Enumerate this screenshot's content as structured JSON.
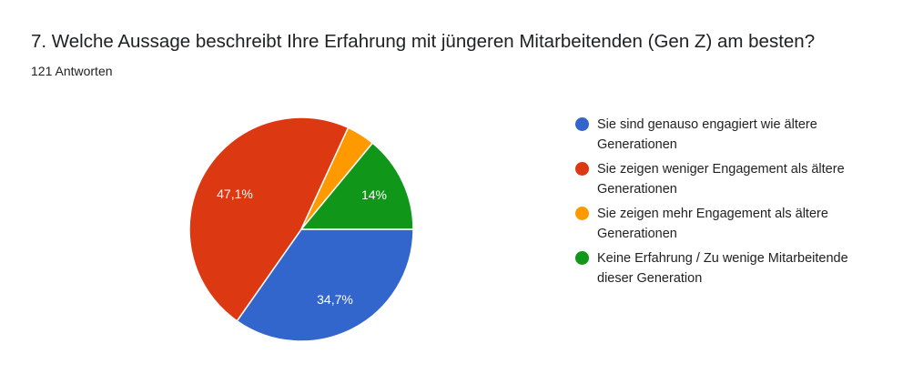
{
  "header": {
    "title": "7. Welche Aussage beschreibt Ihre Erfahrung mit jüngeren Mitarbeitenden (Gen Z) am besten?",
    "responses": "121 Antworten"
  },
  "legend": {
    "items": [
      {
        "label": "Sie sind genauso engagiert wie ältere Generationen",
        "color": "#3366cc"
      },
      {
        "label": "Sie zeigen weniger Engagement als ältere Generationen",
        "color": "#dc3912"
      },
      {
        "label": "Sie zeigen mehr Engagement als ältere Generationen",
        "color": "#ff9900"
      },
      {
        "label": "Keine Erfahrung / Zu wenige Mitarbeitende dieser Generation",
        "color": "#109618"
      }
    ]
  },
  "slice_labels": {
    "blue": "34,7%",
    "red": "47,1%",
    "orange": "",
    "green": "14%"
  },
  "chart_data": {
    "type": "pie",
    "title": "7. Welche Aussage beschreibt Ihre Erfahrung mit jüngeren Mitarbeitenden (Gen Z) am besten?",
    "subtitle": "121 Antworten",
    "categories": [
      "Sie sind genauso engagiert wie ältere Generationen",
      "Sie zeigen weniger Engagement als ältere Generationen",
      "Sie zeigen mehr Engagement als ältere Generationen",
      "Keine Erfahrung / Zu wenige Mitarbeitende dieser Generation"
    ],
    "values": [
      34.7,
      47.1,
      4.1,
      14.0
    ],
    "counts": [
      42,
      57,
      5,
      17
    ],
    "colors": [
      "#3366cc",
      "#dc3912",
      "#ff9900",
      "#109618"
    ],
    "data_labels": [
      "34,7%",
      "47,1%",
      "",
      "14%"
    ],
    "legend_position": "right"
  }
}
